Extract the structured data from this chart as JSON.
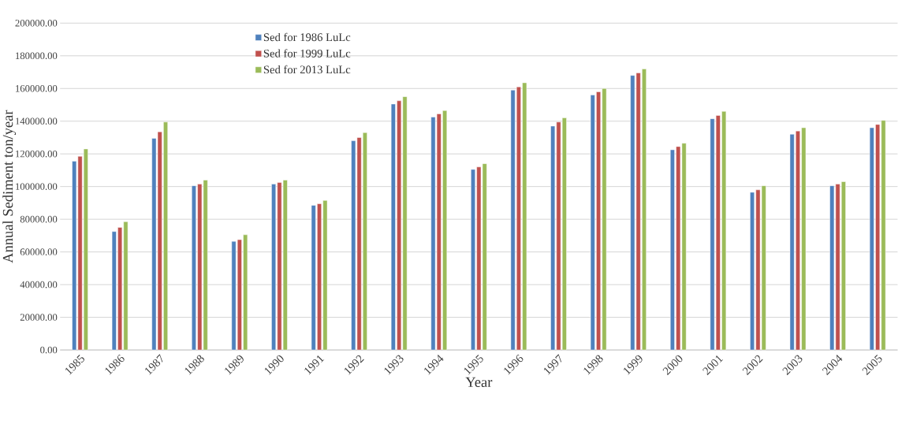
{
  "chart_data": {
    "type": "bar",
    "xlabel": "Year",
    "ylabel": "Annual Sediment ton/year",
    "categories": [
      "1985",
      "1986",
      "1987",
      "1988",
      "1989",
      "1990",
      "1991",
      "1992",
      "1993",
      "1994",
      "1995",
      "1996",
      "1997",
      "1998",
      "1999",
      "2000",
      "2001",
      "2002",
      "2003",
      "2004",
      "2005"
    ],
    "series": [
      {
        "name": "Sed for 1986 LuLc",
        "color": "#4f81bd",
        "values": [
          115500,
          72500,
          129500,
          100500,
          66500,
          101500,
          88500,
          128000,
          150500,
          142500,
          110500,
          159000,
          137000,
          156000,
          168000,
          122500,
          141500,
          96500,
          132000,
          100500,
          136000
        ]
      },
      {
        "name": "Sed for 1999 LuLc",
        "color": "#c0504d",
        "values": [
          118500,
          75000,
          133500,
          101500,
          67500,
          102500,
          89500,
          130000,
          152500,
          144500,
          112000,
          161000,
          139500,
          158000,
          169500,
          124500,
          143500,
          98000,
          134000,
          101500,
          138000
        ]
      },
      {
        "name": "Sed for 2013 LuLc",
        "color": "#9bbb59",
        "values": [
          123000,
          78500,
          139500,
          104000,
          70500,
          104000,
          91500,
          133000,
          155000,
          146500,
          114000,
          163500,
          142000,
          160000,
          172000,
          126500,
          146000,
          100500,
          136000,
          103000,
          140500
        ]
      }
    ],
    "ylim": [
      0,
      200000
    ],
    "yticks": [
      {
        "value": 0,
        "label": "0.00"
      },
      {
        "value": 20000,
        "label": "20000.00"
      },
      {
        "value": 40000,
        "label": "40000.00"
      },
      {
        "value": 60000,
        "label": "60000.00"
      },
      {
        "value": 80000,
        "label": "80000.00"
      },
      {
        "value": 100000,
        "label": "100000.00"
      },
      {
        "value": 120000,
        "label": "120000.00"
      },
      {
        "value": 140000,
        "label": "140000.00"
      },
      {
        "value": 160000,
        "label": "160000.00"
      },
      {
        "value": 180000,
        "label": "180000.00"
      },
      {
        "value": 200000,
        "label": "200000.00"
      }
    ],
    "grid": "y",
    "legend": "top left"
  }
}
